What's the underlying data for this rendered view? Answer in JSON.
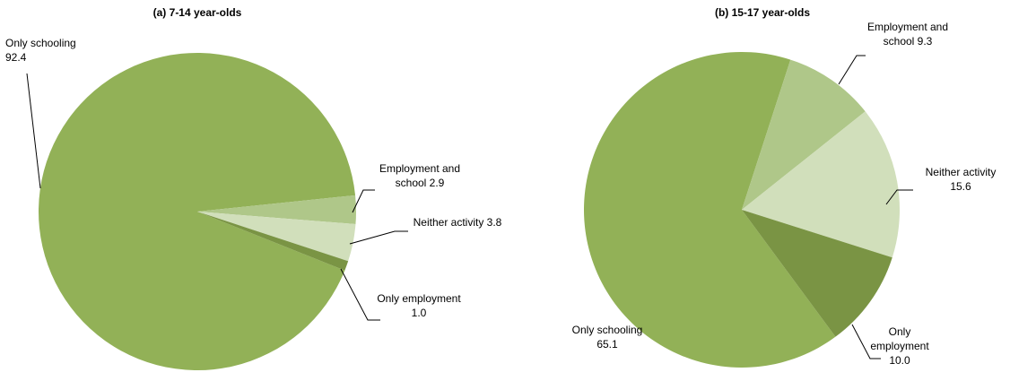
{
  "chart_data": [
    {
      "type": "pie",
      "title": "(a) 7-14 year-olds",
      "categories": [
        "Only schooling",
        "Employment and school",
        "Neither activity",
        "Only employment"
      ],
      "values": [
        92.4,
        2.9,
        3.8,
        1.0
      ],
      "value_labels": [
        "92.4",
        "2.9",
        "3.8",
        "1.0"
      ],
      "colors": [
        "#92b157",
        "#afc789",
        "#d1dfbb",
        "#7a9444"
      ]
    },
    {
      "type": "pie",
      "title": "(b) 15-17 year-olds",
      "categories": [
        "Only schooling",
        "Employment and school",
        "Neither activity",
        "Only employment"
      ],
      "values": [
        65.1,
        9.3,
        15.6,
        10.0
      ],
      "value_labels": [
        "65.1",
        "9.3",
        "15.6",
        "10.0"
      ],
      "colors": [
        "#92b157",
        "#afc789",
        "#d1dfbb",
        "#7a9444"
      ]
    }
  ]
}
